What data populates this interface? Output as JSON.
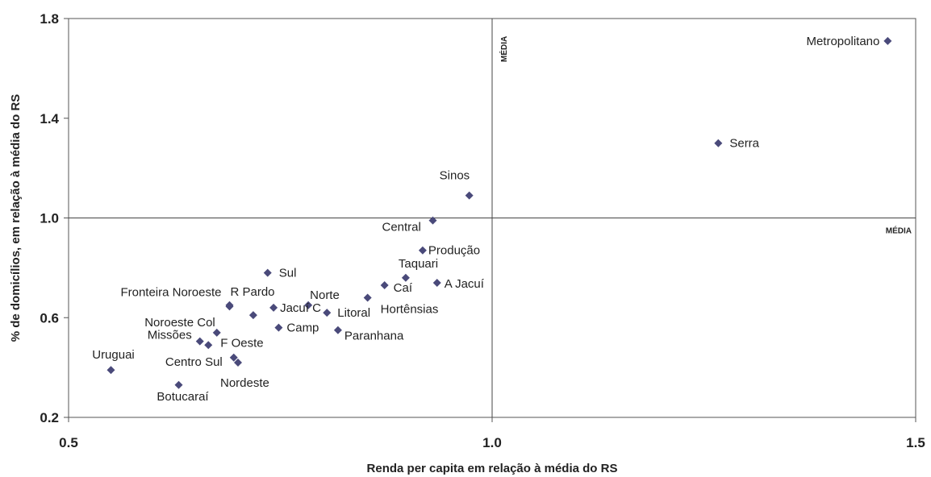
{
  "chart_data": {
    "type": "scatter",
    "xlabel": "Renda per capita em relação à média do RS",
    "ylabel": "% de domicílios, em relação à média do RS",
    "xlim": [
      0.5,
      1.5
    ],
    "ylim": [
      0.2,
      1.8
    ],
    "x_ticks": [
      "0.5",
      "1.0",
      "1.5"
    ],
    "y_ticks": [
      "0.2",
      "0.6",
      "1.0",
      "1.4",
      "1.8"
    ],
    "grid": false,
    "legend": "none",
    "marker_color": "#4a4a7a",
    "reference_lines": {
      "x": 1.0,
      "x_label": "MÉDIA",
      "y": 1.0,
      "y_label": "MÉDIA"
    },
    "points": [
      {
        "label": "Metropolitano",
        "x": 1.467,
        "y": 1.71
      },
      {
        "label": "Serra",
        "x": 1.267,
        "y": 1.3
      },
      {
        "label": "Sinos",
        "x": 0.973,
        "y": 1.09
      },
      {
        "label": "Central",
        "x": 0.93,
        "y": 0.99
      },
      {
        "label": "Produção",
        "x": 0.918,
        "y": 0.87
      },
      {
        "label": "Sul",
        "x": 0.735,
        "y": 0.78
      },
      {
        "label": "Taquari",
        "x": 0.898,
        "y": 0.76
      },
      {
        "label": "Caí",
        "x": 0.873,
        "y": 0.73
      },
      {
        "label": "A Jacuí",
        "x": 0.935,
        "y": 0.74
      },
      {
        "label": "Hortênsias",
        "x": 0.853,
        "y": 0.68
      },
      {
        "label": "Norte",
        "x": 0.783,
        "y": 0.65
      },
      {
        "label": "R Pardo",
        "x": 0.69,
        "y": 0.65
      },
      {
        "label": "Fronteira Noroeste",
        "x": 0.69,
        "y": 0.645
      },
      {
        "label": "Litoral",
        "x": 0.805,
        "y": 0.62
      },
      {
        "label": "Jacuí C",
        "x": 0.742,
        "y": 0.64
      },
      {
        "label": "Jacuí C",
        "x": 0.718,
        "y": 0.61
      },
      {
        "label": "Camp",
        "x": 0.748,
        "y": 0.56
      },
      {
        "label": "Paranhana",
        "x": 0.818,
        "y": 0.55
      },
      {
        "label": "Noroeste Col",
        "x": 0.675,
        "y": 0.54
      },
      {
        "label": "Missões",
        "x": 0.655,
        "y": 0.505
      },
      {
        "label": "F Oeste",
        "x": 0.665,
        "y": 0.49
      },
      {
        "label": "Centro Sul",
        "x": 0.695,
        "y": 0.44
      },
      {
        "label": "Nordeste",
        "x": 0.7,
        "y": 0.42
      },
      {
        "label": "Uruguai",
        "x": 0.55,
        "y": 0.39
      },
      {
        "label": "Botucaraí",
        "x": 0.63,
        "y": 0.33
      }
    ]
  }
}
